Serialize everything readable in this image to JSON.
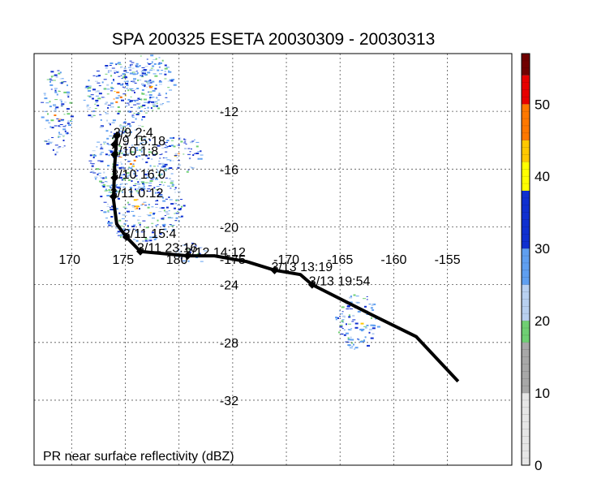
{
  "chart_data": {
    "type": "map-track",
    "title": "SPA 200325 ESETA 20030309 - 20030313",
    "footer_label": "PR near surface reflectivity (dBZ)",
    "longitude_ticks": [
      {
        "label": "170",
        "value": 170
      },
      {
        "label": "175",
        "value": 175
      },
      {
        "label": "180",
        "value": 180
      },
      {
        "label": "-175",
        "value": 185
      },
      {
        "label": "-170",
        "value": 190
      },
      {
        "label": "-165",
        "value": 195
      },
      {
        "label": "-160",
        "value": 200
      },
      {
        "label": "-155",
        "value": 205
      }
    ],
    "latitude_ticks": [
      {
        "label": "-12",
        "value": -12
      },
      {
        "label": "-16",
        "value": -16
      },
      {
        "label": "-20",
        "value": -20
      },
      {
        "label": "-24",
        "value": -24
      },
      {
        "label": "-28",
        "value": -28
      },
      {
        "label": "-32",
        "value": -32
      }
    ],
    "lon_range": [
      166.5,
      211
    ],
    "lat_range": [
      -36.5,
      -8
    ],
    "track": [
      {
        "lon": 174.2,
        "lat": -13.7
      },
      {
        "lon": 174.0,
        "lat": -15.8
      },
      {
        "lon": 173.9,
        "lat": -18.1
      },
      {
        "lon": 174.2,
        "lat": -19.8
      },
      {
        "lon": 175.1,
        "lat": -20.7
      },
      {
        "lon": 176.4,
        "lat": -21.7
      },
      {
        "lon": 180.8,
        "lat": -22.0
      },
      {
        "lon": 183.3,
        "lat": -22.0
      },
      {
        "lon": 186.3,
        "lat": -22.4
      },
      {
        "lon": 188.9,
        "lat": -23.0
      },
      {
        "lon": 191.3,
        "lat": -23.3
      },
      {
        "lon": 192.4,
        "lat": -24.0
      },
      {
        "lon": 198.0,
        "lat": -26.1
      },
      {
        "lon": 202.1,
        "lat": -27.6
      },
      {
        "lon": 206.0,
        "lat": -30.7
      }
    ],
    "fixes": [
      {
        "label": "3/9 2:4",
        "lon": 174.2,
        "lat": -13.7
      },
      {
        "label": "3/9 15:18",
        "lon": 174.0,
        "lat": -14.3
      },
      {
        "label": "3/10 1:8",
        "lon": 174.0,
        "lat": -15.0
      },
      {
        "label": "3/10 16:0",
        "lon": 174.0,
        "lat": -16.6
      },
      {
        "label": "3/11 0:12",
        "lon": 173.9,
        "lat": -17.9
      },
      {
        "label": "3/11 15:4",
        "lon": 175.1,
        "lat": -20.7
      },
      {
        "label": "3/11 23:16",
        "lon": 176.4,
        "lat": -21.7
      },
      {
        "label": "3/12 14:12",
        "lon": 180.8,
        "lat": -22.0
      },
      {
        "label": "3/13 13:19",
        "lon": 188.9,
        "lat": -23.0
      },
      {
        "label": "3/13 19:54",
        "lon": 192.4,
        "lat": -24.0
      }
    ],
    "rain_areas": [
      {
        "lon": 174.5,
        "lat": -11.0,
        "r_lon": 3.5,
        "r_lat": 2.5
      },
      {
        "lon": 177.0,
        "lat": -10.0,
        "r_lon": 2.5,
        "r_lat": 2.0
      },
      {
        "lon": 175.0,
        "lat": -15.5,
        "r_lon": 3.5,
        "r_lat": 2.2
      },
      {
        "lon": 176.5,
        "lat": -18.5,
        "r_lon": 4.0,
        "r_lat": 2.5
      },
      {
        "lon": 180.0,
        "lat": -15.0,
        "r_lon": 2.0,
        "r_lat": 1.5
      },
      {
        "lon": 181.0,
        "lat": -21.8,
        "r_lon": 1.5,
        "r_lat": 0.8
      },
      {
        "lon": 196.5,
        "lat": -26.5,
        "r_lon": 2.0,
        "r_lat": 2.0
      },
      {
        "lon": 168.5,
        "lat": -12.0,
        "r_lon": 1.5,
        "r_lat": 3.0
      }
    ],
    "colorbar": {
      "min": 0,
      "max": 57,
      "tick_labels": [
        "0",
        "10",
        "20",
        "30",
        "40",
        "50"
      ],
      "tick_values": [
        0,
        10,
        20,
        30,
        40,
        50
      ],
      "bands": [
        {
          "from": 0,
          "to": 10,
          "color": "#e6e6e6"
        },
        {
          "from": 10,
          "to": 17,
          "color": "#a8a8a8"
        },
        {
          "from": 17,
          "to": 20,
          "color": "#6fcf73"
        },
        {
          "from": 20,
          "to": 25,
          "color": "#b8d0f0"
        },
        {
          "from": 25,
          "to": 30,
          "color": "#5f9ff0"
        },
        {
          "from": 30,
          "to": 38,
          "color": "#1030d0"
        },
        {
          "from": 38,
          "to": 42,
          "color": "#ffff00"
        },
        {
          "from": 42,
          "to": 45,
          "color": "#ffc800"
        },
        {
          "from": 45,
          "to": 50,
          "color": "#ff7800"
        },
        {
          "from": 50,
          "to": 54,
          "color": "#e60000"
        },
        {
          "from": 54,
          "to": 57,
          "color": "#700000"
        }
      ]
    }
  }
}
